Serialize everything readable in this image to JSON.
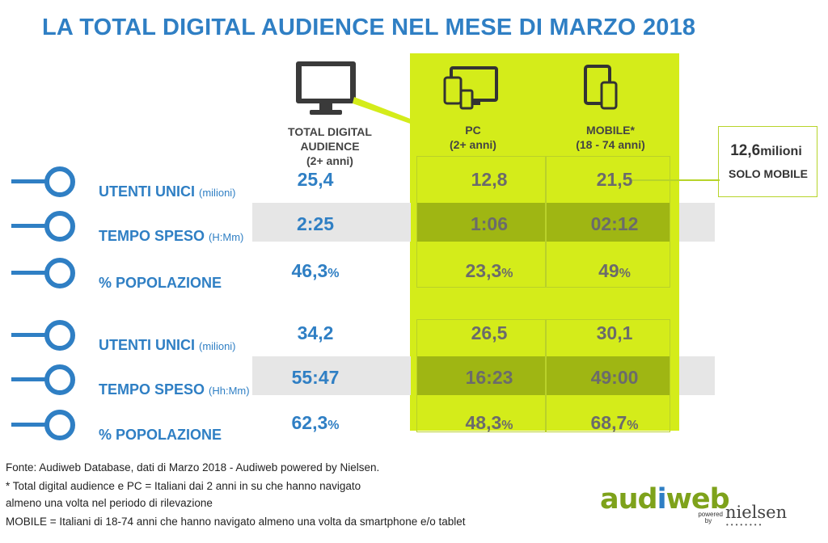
{
  "title": "LA TOTAL DIGITAL AUDIENCE NEL MESE DI MARZO 2018",
  "columns": {
    "total": {
      "label": "TOTAL DIGITAL AUDIENCE",
      "sub": "(2+ anni)"
    },
    "pc": {
      "label": "PC",
      "sub": "(2+ anni)"
    },
    "mobile": {
      "label": "MOBILE*",
      "sub": "(18 - 74 anni)"
    }
  },
  "callout": {
    "value": "12,6",
    "unit": "milioni",
    "label": "SOLO MOBILE"
  },
  "chart_data": {
    "type": "table",
    "title": "LA TOTAL DIGITAL AUDIENCE NEL MESE DI MARZO 2018",
    "columns": [
      "TOTAL DIGITAL AUDIENCE (2+ anni)",
      "PC (2+ anni)",
      "MOBILE* (18 - 74 anni)"
    ],
    "blocks": [
      {
        "rows": [
          {
            "label": "UTENTI UNICI",
            "unit": "(milioni)",
            "total": "25,4",
            "pc": "12,8",
            "mobile": "21,5",
            "suffix": ""
          },
          {
            "label": "TEMPO SPESO",
            "unit": "(H:Mm)",
            "total": "2:25",
            "pc": "1:06",
            "mobile": "02:12",
            "suffix": ""
          },
          {
            "label": "% POPOLAZIONE",
            "unit": "",
            "total": "46,3",
            "pc": "23,3",
            "mobile": "49",
            "suffix": "%"
          }
        ]
      },
      {
        "rows": [
          {
            "label": "UTENTI UNICI",
            "unit": "(milioni)",
            "total": "34,2",
            "pc": "26,5",
            "mobile": "30,1",
            "suffix": ""
          },
          {
            "label": "TEMPO SPESO",
            "unit": "(Hh:Mm)",
            "total": "55:47",
            "pc": "16:23",
            "mobile": "49:00",
            "suffix": ""
          },
          {
            "label": "% POPOLAZIONE",
            "unit": "",
            "total": "62,3",
            "pc": "48,3",
            "mobile": "68,7",
            "suffix": "%"
          }
        ]
      }
    ]
  },
  "footnotes": [
    "Fonte: Audiweb Database, dati di Marzo 2018 - Audiweb powered by Nielsen.",
    "* Total digital audience e PC = Italiani dai 2 anni in su che hanno navigato",
    "almeno una volta nel periodo di rilevazione",
    "MOBILE = Italiani di 18-74 anni che hanno navigato almeno una volta da smartphone e/o tablet"
  ],
  "logo": {
    "audi": "aud",
    "i": "i",
    "web": "web",
    "powered": "powered",
    "by": "by",
    "nielsen": "nielsen"
  },
  "colors": {
    "blue": "#2f7fc4",
    "lime": "#d4ec1a",
    "olive": "#9fb613",
    "gray_band": "#e6e6e6"
  }
}
